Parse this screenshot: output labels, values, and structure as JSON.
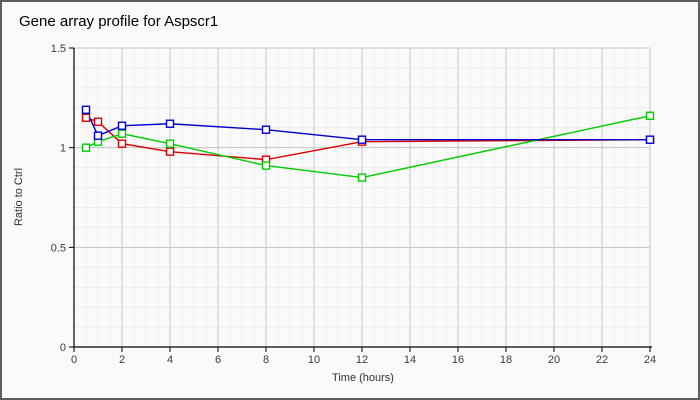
{
  "chart": {
    "title": "Gene array profile for Aspscr1",
    "xlabel": "Time (hours)",
    "ylabel": "Ratio to Ctrl"
  },
  "chart_data": {
    "type": "line",
    "title": "Gene array profile for Aspscr1",
    "xlabel": "Time (hours)",
    "ylabel": "Ratio to Ctrl",
    "x": [
      0.5,
      1,
      2,
      4,
      8,
      12,
      24
    ],
    "series": [
      {
        "name": "red-series",
        "color": "#dd0000",
        "values": [
          1.15,
          1.13,
          1.02,
          0.98,
          0.94,
          1.03,
          1.04
        ]
      },
      {
        "name": "green-series",
        "color": "#00cc00",
        "values": [
          1.0,
          1.03,
          1.07,
          1.02,
          0.91,
          0.85,
          1.16
        ]
      },
      {
        "name": "blue-series",
        "color": "#0000cc",
        "values": [
          1.19,
          1.06,
          1.11,
          1.12,
          1.09,
          1.04,
          1.04
        ]
      }
    ],
    "xlim": [
      0,
      24
    ],
    "ylim": [
      0,
      1.5
    ],
    "xticks": [
      0,
      2,
      4,
      6,
      8,
      10,
      12,
      14,
      16,
      18,
      20,
      22,
      24
    ],
    "yticks": [
      0,
      0.5,
      1,
      1.5
    ],
    "ytick_labels": [
      "0",
      "0.5",
      "1",
      "1.5"
    ],
    "x_minor_step": 0.5,
    "y_minor_step": 0.1,
    "grid": true,
    "legend": "none",
    "marker": "open-square"
  },
  "colors": {
    "background": "#fafafa",
    "border": "#5e5e5e",
    "grid_major": "#c6c6c6",
    "grid_minor": "#eeeaea",
    "axis": "#000000",
    "tick_text": "#3c3c3c",
    "marker_fill": "#ffffff"
  }
}
